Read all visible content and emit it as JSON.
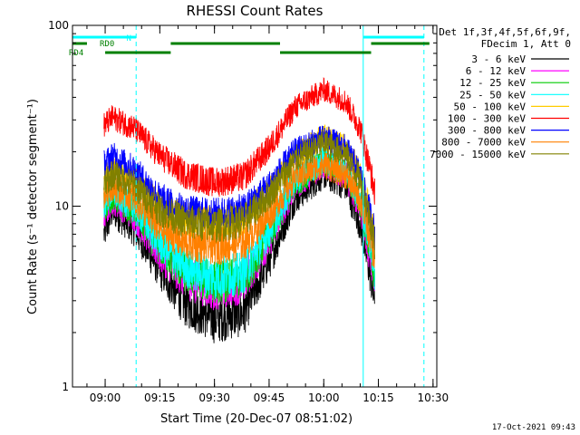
{
  "chart_data": {
    "type": "line",
    "title": "RHESSI Count Rates",
    "xlabel": "Start Time (20-Dec-07 08:51:02)",
    "ylabel": "Count Rate (s⁻¹ detector segment⁻¹)",
    "yscale": "log",
    "ylim": [
      1,
      100
    ],
    "xlim": [
      "08:51:02",
      "10:31:02"
    ],
    "x_tick_labels": [
      "09:00",
      "09:15",
      "09:30",
      "09:45",
      "10:00",
      "10:15",
      "10:30"
    ],
    "y_tick_labels": [
      "1",
      "10",
      "100"
    ],
    "grid": false,
    "legend_position": "top-right, outside plot",
    "legend_header": [
      "Det 1f,3f,4f,5f,6f,9f,",
      "FDecim 1, Att 0"
    ],
    "series": [
      {
        "name": "3 - 6 keV",
        "color": "#000000",
        "times": [
          "08:59:40",
          "09:02:00",
          "09:08:00",
          "09:15:00",
          "09:22:00",
          "09:30:00",
          "09:38:00",
          "09:45:00",
          "09:52:00",
          "10:00:00",
          "10:06:00",
          "10:10:00",
          "10:13:00",
          "10:14:00"
        ],
        "values": [
          7.0,
          9.5,
          7.5,
          4.5,
          2.9,
          2.4,
          2.6,
          5.0,
          11.0,
          15.0,
          13.0,
          8.0,
          4.0,
          3.0
        ]
      },
      {
        "name": "6 - 12 keV",
        "color": "#ff00ff",
        "times": [
          "08:59:40",
          "09:02:00",
          "09:08:00",
          "09:15:00",
          "09:22:00",
          "09:30:00",
          "09:38:00",
          "09:45:00",
          "09:52:00",
          "10:00:00",
          "10:06:00",
          "10:10:00",
          "10:13:00",
          "10:14:00"
        ],
        "values": [
          9.0,
          11.0,
          9.0,
          5.5,
          4.0,
          3.5,
          3.8,
          6.5,
          13.0,
          17.0,
          15.0,
          10.0,
          5.0,
          3.6
        ]
      },
      {
        "name": "12 - 25 keV",
        "color": "#00cc00",
        "times": [
          "08:59:40",
          "09:02:00",
          "09:08:00",
          "09:15:00",
          "09:22:00",
          "09:30:00",
          "09:38:00",
          "09:45:00",
          "09:52:00",
          "10:00:00",
          "10:06:00",
          "10:10:00",
          "10:13:00",
          "10:14:00"
        ],
        "values": [
          10.0,
          11.5,
          9.5,
          6.0,
          4.3,
          3.8,
          4.0,
          7.0,
          13.5,
          17.5,
          15.5,
          10.5,
          5.5,
          4.0
        ]
      },
      {
        "name": "25 - 50 keV",
        "color": "#00ffff",
        "times": [
          "08:59:40",
          "09:02:00",
          "09:08:00",
          "09:15:00",
          "09:22:00",
          "09:30:00",
          "09:38:00",
          "09:45:00",
          "09:52:00",
          "10:00:00",
          "10:06:00",
          "10:10:00",
          "10:13:00",
          "10:14:00"
        ],
        "values": [
          10.5,
          12.0,
          10.0,
          6.3,
          4.6,
          4.0,
          4.3,
          7.3,
          14.0,
          18.0,
          16.0,
          11.0,
          6.0,
          4.3
        ]
      },
      {
        "name": "50 - 100 keV",
        "color": "#ffcc00",
        "times": [
          "08:59:40",
          "09:02:00",
          "09:08:00",
          "09:15:00",
          "09:22:00",
          "09:30:00",
          "09:38:00",
          "09:45:00",
          "09:52:00",
          "10:00:00",
          "10:06:00",
          "10:10:00",
          "10:13:00",
          "10:14:00"
        ],
        "values": [
          14.0,
          16.0,
          14.0,
          10.0,
          8.5,
          8.0,
          8.5,
          12.0,
          19.0,
          24.0,
          21.0,
          15.0,
          8.5,
          6.5
        ]
      },
      {
        "name": "100 - 300 keV",
        "color": "#ff0000",
        "times": [
          "08:59:40",
          "09:02:00",
          "09:08:00",
          "09:15:00",
          "09:22:00",
          "09:30:00",
          "09:38:00",
          "09:45:00",
          "09:52:00",
          "10:00:00",
          "10:06:00",
          "10:10:00",
          "10:13:00",
          "10:14:00"
        ],
        "values": [
          28.0,
          31.0,
          27.0,
          19.0,
          15.0,
          13.5,
          14.5,
          21.0,
          35.0,
          44.0,
          38.0,
          27.0,
          15.0,
          12.0
        ]
      },
      {
        "name": "300 - 800 keV",
        "color": "#0000ff",
        "times": [
          "08:59:40",
          "09:02:00",
          "09:08:00",
          "09:15:00",
          "09:22:00",
          "09:30:00",
          "09:38:00",
          "09:45:00",
          "09:52:00",
          "10:00:00",
          "10:06:00",
          "10:10:00",
          "10:13:00",
          "10:14:00"
        ],
        "values": [
          17.0,
          19.0,
          16.0,
          11.0,
          9.3,
          9.0,
          9.5,
          13.0,
          20.0,
          24.0,
          21.0,
          15.0,
          8.5,
          7.0
        ]
      },
      {
        "name": "800 - 7000 keV",
        "color": "#ff8000",
        "times": [
          "08:59:40",
          "09:02:00",
          "09:08:00",
          "09:15:00",
          "09:22:00",
          "09:30:00",
          "09:38:00",
          "09:45:00",
          "09:52:00",
          "10:00:00",
          "10:06:00",
          "10:10:00",
          "10:13:00",
          "10:14:00"
        ],
        "values": [
          11.5,
          13.0,
          11.0,
          7.5,
          6.3,
          6.0,
          6.3,
          9.0,
          14.5,
          17.0,
          15.0,
          11.0,
          6.5,
          5.2
        ]
      },
      {
        "name": "7000 - 15000 keV",
        "color": "#808000",
        "times": [
          "08:59:40",
          "09:02:00",
          "09:08:00",
          "09:15:00",
          "09:22:00",
          "09:30:00",
          "09:38:00",
          "09:45:00",
          "09:52:00",
          "10:00:00",
          "10:06:00",
          "10:10:00",
          "10:13:00",
          "10:14:00"
        ],
        "values": [
          13.0,
          15.0,
          13.0,
          9.5,
          8.2,
          7.8,
          8.3,
          11.5,
          18.0,
          22.5,
          19.5,
          14.0,
          8.0,
          6.2
        ]
      }
    ],
    "annotations": {
      "vertical_lines": [
        {
          "time": "09:08:30",
          "style": "dashed",
          "color": "#00ffff"
        },
        {
          "time": "10:10:50",
          "style": "solid",
          "color": "#00ffff"
        },
        {
          "time": "10:27:30",
          "style": "dashed",
          "color": "#00ffff"
        }
      ],
      "night_bars": {
        "label": "N",
        "color": "#00ffff",
        "intervals": [
          [
            "08:51:02",
            "09:08:30"
          ],
          [
            "10:10:50",
            "10:27:30"
          ]
        ]
      },
      "attenuator_bars": {
        "color": "#008000",
        "rows": [
          {
            "label": "RD0",
            "intervals": [
              [
                "08:51:02",
                "08:55:00"
              ],
              [
                "09:18:00",
                "09:48:00"
              ],
              [
                "10:13:00",
                "10:29:00"
              ]
            ]
          },
          {
            "label": "RD4",
            "intervals": [
              [
                "09:00:00",
                "09:18:00"
              ],
              [
                "09:48:00",
                "10:13:00"
              ]
            ]
          }
        ]
      }
    },
    "colors": {
      "axes": "#000000",
      "background": "#ffffff"
    }
  },
  "timestamp": "17-Oct-2021 09:43"
}
